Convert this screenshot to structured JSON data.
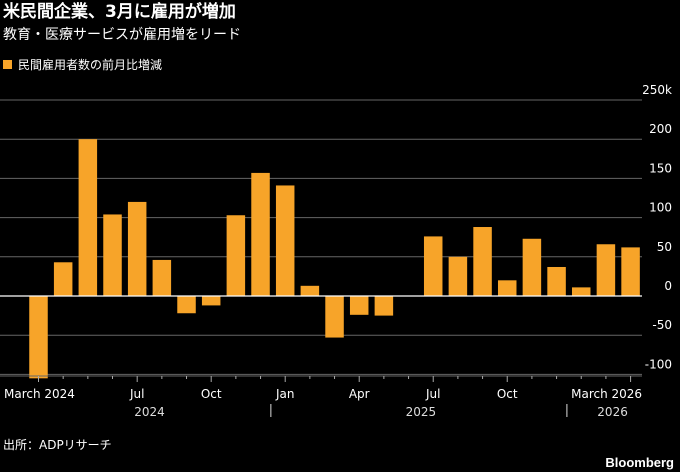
{
  "title": "米民間企業、3月に雇用が増加",
  "subtitle": "教育・医療サービスが雇用増をリード",
  "legend": {
    "label": "民間雇用者数の前月比増減",
    "color": "#F7A429"
  },
  "source": "出所：ADPリサーチ",
  "brand": "Bloomberg",
  "colors": {
    "bar": "#F7A429",
    "background": "#000000",
    "grid": "#666666",
    "zero_line": "#FFFFFF",
    "text": "#FFFFFF"
  },
  "chart_data": {
    "type": "bar",
    "title": "米民間企業、3月に雇用が増加",
    "subtitle": "教育・医療サービスが雇用増をリード",
    "xlabel": "",
    "ylabel": "",
    "ylim": [
      -100,
      250
    ],
    "y_ticks": [
      -100,
      -50,
      0,
      50,
      100,
      150,
      200,
      250
    ],
    "y_tick_labels": [
      "-100",
      "-50",
      "0",
      "50",
      "100",
      "150",
      "200",
      "250k"
    ],
    "grid": true,
    "legend_position": "top-left",
    "categories": [
      "2024-03",
      "2024-04",
      "2024-05",
      "2024-06",
      "2024-07",
      "2024-08",
      "2024-09",
      "2024-10",
      "2024-11",
      "2024-12",
      "2025-01",
      "2025-02",
      "2025-03",
      "2025-04",
      "2025-05",
      "2025-06",
      "2025-07",
      "2025-08",
      "2025-09",
      "2025-10",
      "2025-11",
      "2025-12",
      "2026-01",
      "2026-02",
      "2026-03"
    ],
    "series": [
      {
        "name": "民間雇用者数の前月比増減",
        "values": [
          -105,
          43,
          200,
          104,
          120,
          46,
          -22,
          -12,
          103,
          157,
          141,
          13,
          -53,
          -24,
          -25,
          0,
          76,
          50,
          88,
          20,
          73,
          37,
          11,
          66,
          62
        ]
      }
    ],
    "x_tick_labels": [
      {
        "index": 0,
        "label": "March 2024"
      },
      {
        "index": 4,
        "label": "Jul"
      },
      {
        "index": 7,
        "label": "Oct"
      },
      {
        "index": 10,
        "label": "Jan"
      },
      {
        "index": 13,
        "label": "Apr"
      },
      {
        "index": 16,
        "label": "Jul"
      },
      {
        "index": 19,
        "label": "Oct"
      },
      {
        "index": 24,
        "label": "March 2026"
      }
    ],
    "year_labels": [
      {
        "label": "2024",
        "start": 0,
        "end": 9
      },
      {
        "label": "2025",
        "start": 10,
        "end": 21
      },
      {
        "label": "2026",
        "start": 22,
        "end": 24
      }
    ]
  }
}
